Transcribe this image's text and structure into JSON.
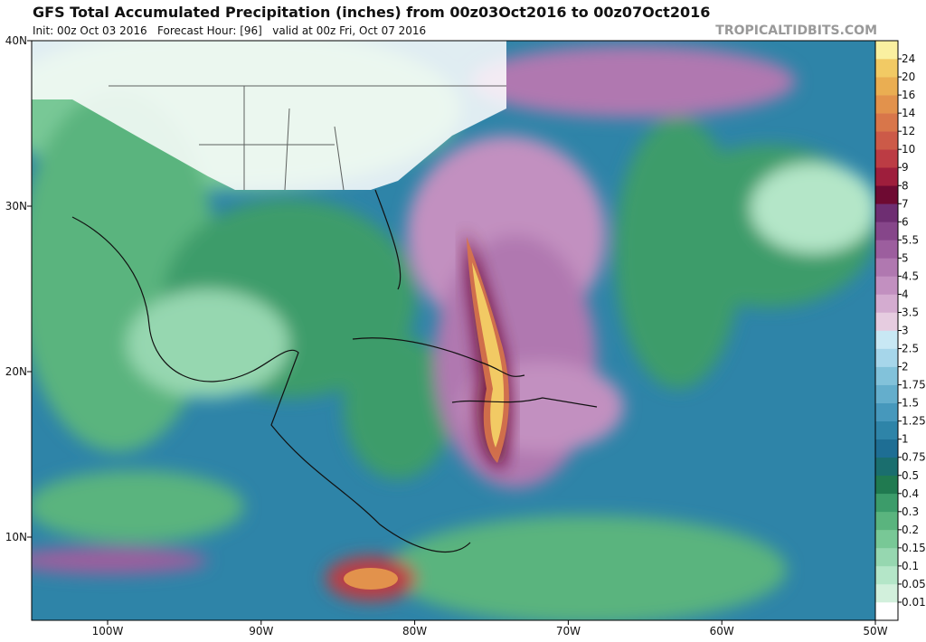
{
  "header": {
    "title": "GFS Total Accumulated Precipitation (inches) from 00z03Oct2016 to 00z07Oct2016",
    "subtitle": "Init: 00z Oct 03 2016   Forecast Hour: [96]   valid at 00z Fri, Oct 07 2016",
    "credit": "TROPICALTIDBITS.COM"
  },
  "map": {
    "lat_labels": [
      "40N",
      "30N",
      "20N",
      "10N"
    ],
    "lon_labels": [
      "100W",
      "90W",
      "80W",
      "70W",
      "60W",
      "50W"
    ]
  },
  "colorbar": {
    "levels": [
      "0.01",
      "0.05",
      "0.1",
      "0.15",
      "0.2",
      "0.3",
      "0.4",
      "0.5",
      "0.75",
      "1",
      "1.25",
      "1.5",
      "1.75",
      "2",
      "2.5",
      "3",
      "3.5",
      "4",
      "4.5",
      "5",
      "5.5",
      "6",
      "7",
      "8",
      "9",
      "10",
      "12",
      "14",
      "16",
      "20",
      "24"
    ],
    "colors": [
      "#ffffff",
      "#d2f0dc",
      "#b4e6c8",
      "#96d7b0",
      "#78c896",
      "#5ab47e",
      "#3c9c6a",
      "#207a50",
      "#1a6e6e",
      "#1e6e94",
      "#2e84a8",
      "#4698bc",
      "#64aecc",
      "#82c2da",
      "#a6d6ea",
      "#c8e8f4",
      "#e6cce0",
      "#d4acd0",
      "#c290c0",
      "#b078b0",
      "#9c5e9e",
      "#86468a",
      "#6e2e72",
      "#6e0a32",
      "#9e1e3c",
      "#bc3c44",
      "#cc5a48",
      "#d8764a",
      "#e2924c",
      "#eaae52",
      "#f2ca64",
      "#faf0a0"
    ]
  }
}
